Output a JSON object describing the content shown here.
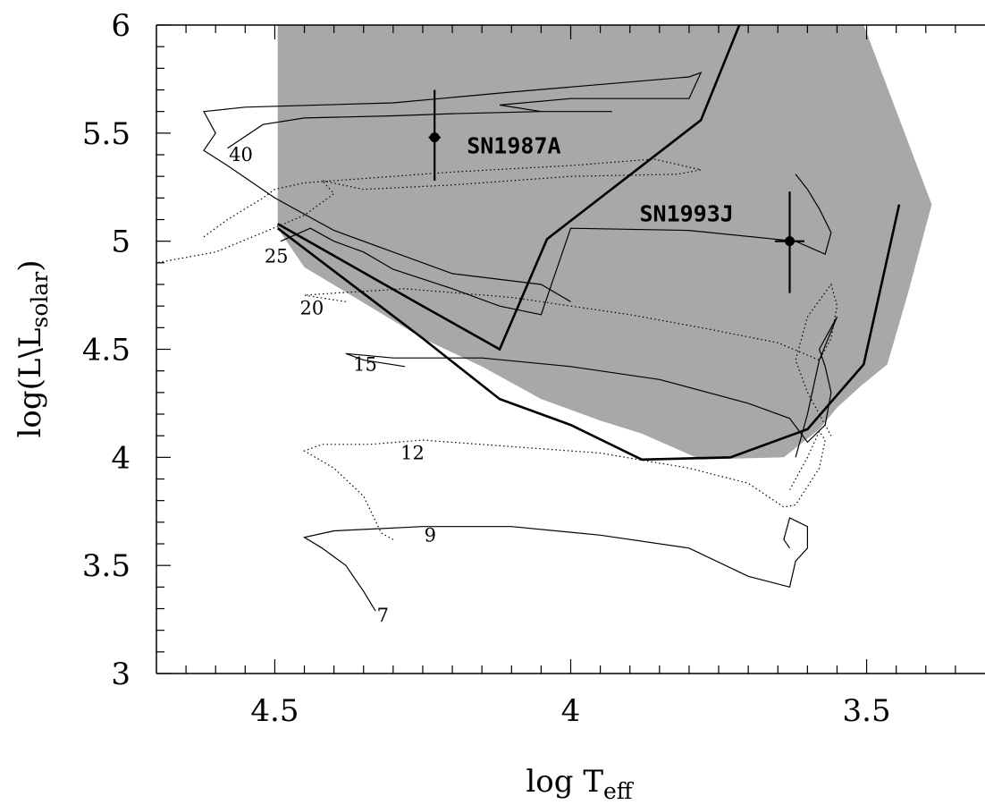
{
  "chart_data": {
    "type": "line",
    "title": "",
    "xlabel": {
      "main": "log T",
      "sub": "eff"
    },
    "ylabel": {
      "main": "log(L\\L",
      "sub": "solar",
      "close": ")"
    },
    "x_reversed": true,
    "xlim": [
      4.7,
      3.3
    ],
    "ylim": [
      3,
      6
    ],
    "xticks": [
      4.5,
      4.0,
      3.5
    ],
    "xtick_labels": [
      "4.5",
      "4",
      "3.5"
    ],
    "yticks": [
      3,
      3.5,
      4,
      4.5,
      5,
      5.5,
      6
    ],
    "ytick_labels": [
      "3",
      "3.5",
      "4",
      "4.5",
      "5",
      "5.5",
      "6"
    ],
    "grid": false,
    "colors": {
      "region_fill": "#a8a8a8",
      "line": "#000000"
    },
    "shaded_region": {
      "description_x_range": [
        4.495,
        3.505
      ],
      "top": 6,
      "lower_boundary": [
        [
          4.495,
          5.06
        ],
        [
          4.45,
          4.88
        ],
        [
          4.25,
          4.55
        ],
        [
          4.15,
          4.42
        ],
        [
          4.05,
          4.27
        ],
        [
          3.95,
          4.17
        ],
        [
          3.88,
          4.11
        ],
        [
          3.78,
          3.99
        ],
        [
          3.64,
          4.0
        ],
        [
          3.58,
          4.13
        ],
        [
          3.55,
          4.23
        ],
        [
          3.51,
          4.33
        ],
        [
          3.465,
          4.43
        ],
        [
          3.43,
          4.76
        ],
        [
          3.39,
          5.17
        ]
      ]
    },
    "boundary_lines": [
      {
        "points": [
          [
            4.495,
            5.08
          ],
          [
            4.25,
            4.7
          ],
          [
            4.12,
            4.5
          ],
          [
            4.04,
            5.01
          ],
          [
            3.78,
            5.56
          ],
          [
            3.715,
            6.0
          ]
        ]
      },
      {
        "points": [
          [
            4.495,
            5.06
          ],
          [
            4.25,
            4.55
          ],
          [
            4.12,
            4.27
          ],
          [
            4.0,
            4.15
          ],
          [
            3.88,
            3.99
          ],
          [
            3.73,
            4.0
          ],
          [
            3.6,
            4.13
          ],
          [
            3.505,
            4.43
          ],
          [
            3.445,
            5.17
          ]
        ]
      }
    ],
    "tracks": [
      {
        "label": "40",
        "style": "solid",
        "points": [
          [
            4.58,
            5.43
          ],
          [
            4.52,
            5.54
          ],
          [
            4.45,
            5.57
          ],
          [
            4.3,
            5.58
          ],
          [
            4.2,
            5.59
          ],
          [
            4.05,
            5.6
          ],
          [
            3.93,
            5.6
          ],
          [
            4.05,
            5.6
          ],
          [
            4.12,
            5.63
          ],
          [
            4.0,
            5.66
          ],
          [
            3.85,
            5.66
          ],
          [
            3.8,
            5.66
          ],
          [
            3.79,
            5.72
          ],
          [
            3.78,
            5.78
          ],
          [
            3.8,
            5.76
          ],
          [
            4.1,
            5.69
          ],
          [
            4.3,
            5.64
          ],
          [
            4.55,
            5.62
          ],
          [
            4.62,
            5.6
          ],
          [
            4.6,
            5.5
          ],
          [
            4.62,
            5.42
          ],
          [
            4.58,
            5.35
          ],
          [
            4.5,
            5.2
          ],
          [
            4.4,
            5.05
          ],
          [
            4.3,
            4.95
          ],
          [
            4.2,
            4.85
          ],
          [
            4.05,
            4.8
          ],
          [
            4.0,
            4.72
          ]
        ]
      },
      {
        "label": "25",
        "style": "dotted",
        "points": [
          [
            4.62,
            5.02
          ],
          [
            4.58,
            5.1
          ],
          [
            4.52,
            5.2
          ],
          [
            4.5,
            5.24
          ],
          [
            4.45,
            5.27
          ],
          [
            4.3,
            5.3
          ],
          [
            4.2,
            5.32
          ],
          [
            4.0,
            5.35
          ],
          [
            3.86,
            5.38
          ],
          [
            3.78,
            5.33
          ],
          [
            3.82,
            5.31
          ],
          [
            4.0,
            5.3
          ],
          [
            4.2,
            5.26
          ],
          [
            4.35,
            5.24
          ],
          [
            4.42,
            5.28
          ],
          [
            4.4,
            5.22
          ],
          [
            4.45,
            5.12
          ],
          [
            4.52,
            5.04
          ],
          [
            4.6,
            4.95
          ],
          [
            4.7,
            4.9
          ]
        ]
      },
      {
        "label": "20",
        "style": "solid",
        "points": [
          [
            4.49,
            5.0
          ],
          [
            4.44,
            5.06
          ],
          [
            4.4,
            5.0
          ],
          [
            4.35,
            4.95
          ],
          [
            4.3,
            4.87
          ],
          [
            4.2,
            4.78
          ],
          [
            4.12,
            4.7
          ],
          [
            4.05,
            4.66
          ],
          [
            4.0,
            5.06
          ],
          [
            3.8,
            5.05
          ],
          [
            3.62,
            5.0
          ],
          [
            3.57,
            4.94
          ],
          [
            3.56,
            5.04
          ],
          [
            3.58,
            5.15
          ],
          [
            3.6,
            5.24
          ],
          [
            3.62,
            5.31
          ]
        ]
      },
      {
        "label": "15",
        "style": "dotted",
        "points": [
          [
            4.38,
            4.72
          ],
          [
            4.45,
            4.75
          ],
          [
            4.4,
            4.76
          ],
          [
            4.28,
            4.78
          ],
          [
            4.1,
            4.74
          ],
          [
            3.9,
            4.66
          ],
          [
            3.78,
            4.6
          ],
          [
            3.65,
            4.53
          ],
          [
            3.58,
            4.45
          ],
          [
            3.56,
            4.55
          ],
          [
            3.55,
            4.7
          ],
          [
            3.56,
            4.8
          ],
          [
            3.6,
            4.65
          ],
          [
            3.62,
            4.45
          ],
          [
            3.6,
            4.3
          ],
          [
            3.58,
            4.2
          ],
          [
            3.56,
            4.1
          ]
        ]
      },
      {
        "label": "12",
        "style": "solid",
        "points": [
          [
            4.28,
            4.42
          ],
          [
            4.35,
            4.45
          ],
          [
            4.38,
            4.48
          ],
          [
            4.3,
            4.46
          ],
          [
            4.15,
            4.46
          ],
          [
            4.0,
            4.42
          ],
          [
            3.85,
            4.36
          ],
          [
            3.7,
            4.25
          ],
          [
            3.63,
            4.18
          ],
          [
            3.6,
            4.07
          ],
          [
            3.57,
            4.15
          ],
          [
            3.56,
            4.3
          ],
          [
            3.57,
            4.42
          ],
          [
            3.58,
            4.5
          ],
          [
            3.56,
            4.6
          ],
          [
            3.55,
            4.65
          ],
          [
            3.58,
            4.45
          ],
          [
            3.6,
            4.2
          ],
          [
            3.62,
            4.0
          ]
        ]
      },
      {
        "label": "9",
        "style": "dotted",
        "points": [
          [
            4.3,
            3.62
          ],
          [
            4.32,
            3.65
          ],
          [
            4.35,
            3.82
          ],
          [
            4.4,
            3.95
          ],
          [
            4.45,
            4.03
          ],
          [
            4.42,
            4.06
          ],
          [
            4.34,
            4.06
          ],
          [
            4.25,
            4.08
          ],
          [
            4.1,
            4.05
          ],
          [
            3.95,
            4.02
          ],
          [
            3.8,
            3.95
          ],
          [
            3.7,
            3.88
          ],
          [
            3.64,
            3.77
          ],
          [
            3.62,
            3.78
          ],
          [
            3.58,
            3.95
          ],
          [
            3.57,
            4.08
          ],
          [
            3.58,
            4.12
          ],
          [
            3.6,
            4.0
          ],
          [
            3.63,
            3.85
          ]
        ]
      },
      {
        "label": "7",
        "style": "solid",
        "points": [
          [
            4.33,
            3.29
          ],
          [
            4.35,
            3.38
          ],
          [
            4.38,
            3.5
          ],
          [
            4.42,
            3.58
          ],
          [
            4.45,
            3.63
          ],
          [
            4.4,
            3.66
          ],
          [
            4.25,
            3.68
          ],
          [
            4.1,
            3.68
          ],
          [
            3.95,
            3.64
          ],
          [
            3.8,
            3.58
          ],
          [
            3.7,
            3.45
          ],
          [
            3.63,
            3.4
          ],
          [
            3.62,
            3.52
          ],
          [
            3.6,
            3.58
          ],
          [
            3.6,
            3.68
          ],
          [
            3.63,
            3.72
          ],
          [
            3.64,
            3.62
          ],
          [
            3.63,
            3.58
          ]
        ]
      }
    ],
    "points": [
      {
        "label": "SN1987A",
        "x": 4.23,
        "y": 5.48,
        "xerr": 0.01,
        "yerr": [
          0.22,
          0.2
        ]
      },
      {
        "label": "SN1993J",
        "x": 3.63,
        "y": 5.0,
        "xerr": 0.025,
        "yerr": [
          0.23,
          0.24
        ]
      }
    ]
  }
}
